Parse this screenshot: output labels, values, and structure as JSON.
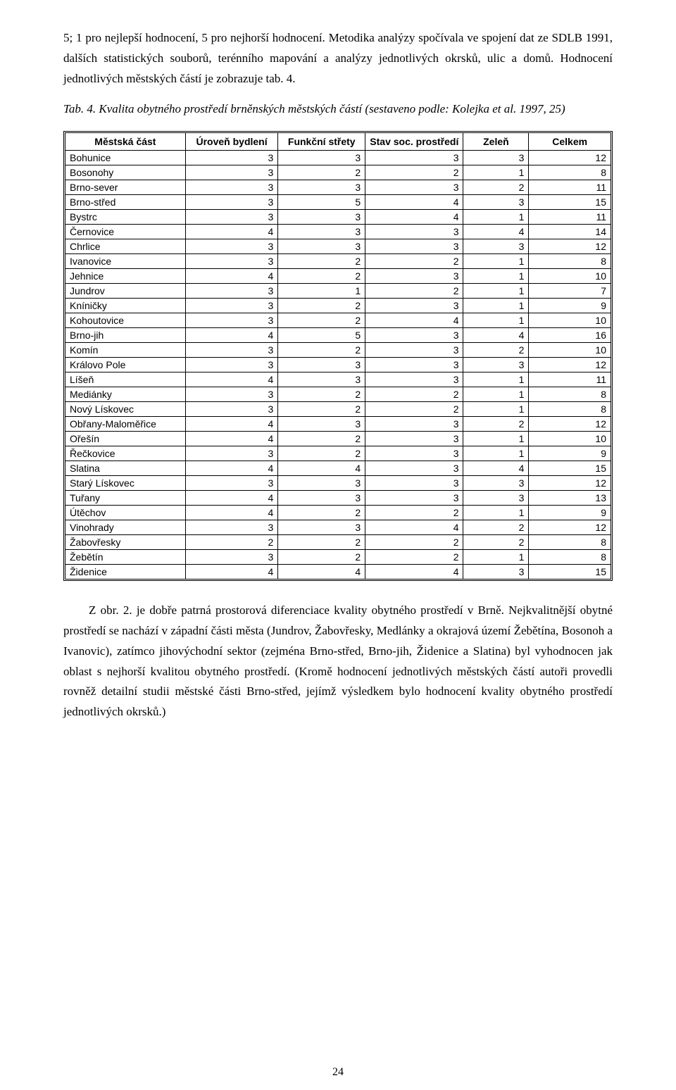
{
  "para_intro": "5; 1 pro nejlepší hodnocení, 5 pro nejhorší hodnocení. Metodika analýzy spočívala ve spojení dat ze SDLB 1991, dalších statistických souborů, terénního mapování a analýzy jednotlivých okrsků, ulic a domů. Hodnocení jednotlivých městských částí je zobrazuje tab. 4.",
  "caption": "Tab. 4. Kvalita obytného prostředí brněnských městských částí (sestaveno podle: Kolejka et al. 1997, 25)",
  "table": {
    "columns": [
      "Městská část",
      "Úroveň bydlení",
      "Funkční střety",
      "Stav soc. prostředí",
      "Zeleň",
      "Celkem"
    ],
    "rows": [
      [
        "Bohunice",
        3,
        3,
        3,
        3,
        12
      ],
      [
        "Bosonohy",
        3,
        2,
        2,
        1,
        8
      ],
      [
        "Brno-sever",
        3,
        3,
        3,
        2,
        11
      ],
      [
        "Brno-střed",
        3,
        5,
        4,
        3,
        15
      ],
      [
        "Bystrc",
        3,
        3,
        4,
        1,
        11
      ],
      [
        "Černovice",
        4,
        3,
        3,
        4,
        14
      ],
      [
        "Chrlice",
        3,
        3,
        3,
        3,
        12
      ],
      [
        "Ivanovice",
        3,
        2,
        2,
        1,
        8
      ],
      [
        "Jehnice",
        4,
        2,
        3,
        1,
        10
      ],
      [
        "Jundrov",
        3,
        1,
        2,
        1,
        7
      ],
      [
        "Kníničky",
        3,
        2,
        3,
        1,
        9
      ],
      [
        "Kohoutovice",
        3,
        2,
        4,
        1,
        10
      ],
      [
        "Brno-jih",
        4,
        5,
        3,
        4,
        16
      ],
      [
        "Komín",
        3,
        2,
        3,
        2,
        10
      ],
      [
        "Královo Pole",
        3,
        3,
        3,
        3,
        12
      ],
      [
        "Líšeň",
        4,
        3,
        3,
        1,
        11
      ],
      [
        "Mediánky",
        3,
        2,
        2,
        1,
        8
      ],
      [
        "Nový Lískovec",
        3,
        2,
        2,
        1,
        8
      ],
      [
        "Obřany-Maloměřice",
        4,
        3,
        3,
        2,
        12
      ],
      [
        "Ořešín",
        4,
        2,
        3,
        1,
        10
      ],
      [
        "Řečkovice",
        3,
        2,
        3,
        1,
        9
      ],
      [
        "Slatina",
        4,
        4,
        3,
        4,
        15
      ],
      [
        "Starý Lískovec",
        3,
        3,
        3,
        3,
        12
      ],
      [
        "Tuřany",
        4,
        3,
        3,
        3,
        13
      ],
      [
        "Útěchov",
        4,
        2,
        2,
        1,
        9
      ],
      [
        "Vinohrady",
        3,
        3,
        4,
        2,
        12
      ],
      [
        "Žabovřesky",
        2,
        2,
        2,
        2,
        8
      ],
      [
        "Žebětín",
        3,
        2,
        2,
        1,
        8
      ],
      [
        "Židenice",
        4,
        4,
        4,
        3,
        15
      ]
    ],
    "header_bg": "#ffffff",
    "border_color": "#000000",
    "font_family": "Arial",
    "font_size_pt": 10,
    "col_widths_pct": [
      22,
      17,
      16,
      18,
      12,
      15
    ],
    "numeric_align": "right",
    "name_align": "left"
  },
  "para_outro": "Z obr. 2. je dobře patrná prostorová diferenciace kvality obytného prostředí v Brně. Nejkvalitnější obytné prostředí se nachází v západní části města (Jundrov, Žabovřesky, Medlánky a okrajová území Žebětína, Bosonoh a Ivanovic), zatímco jihovýchodní sektor (zejména Brno-střed, Brno-jih, Židenice a Slatina) byl vyhodnocen jak oblast s nejhorší kvalitou obytného prostředí. (Kromě hodnocení jednotlivých městských částí autoři provedli rovněž detailní studii městské části Brno-střed, jejímž výsledkem bylo hodnocení kvality obytného prostředí jednotlivých okrsků.)",
  "page_number": "24"
}
